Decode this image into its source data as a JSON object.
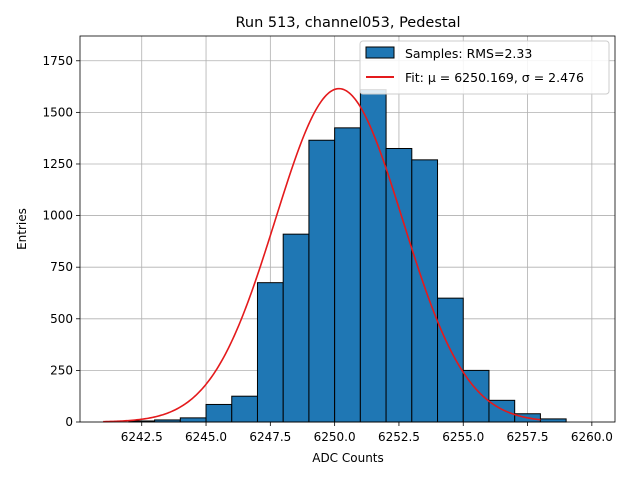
{
  "chart_data": {
    "type": "bar",
    "title": "Run 513, channel053, Pedestal",
    "xlabel": "ADC Counts",
    "ylabel": "Entries",
    "xlim": [
      6240.1,
      6260.9
    ],
    "ylim": [
      0,
      1870
    ],
    "xticks": [
      6242.5,
      6245.0,
      6247.5,
      6250.0,
      6252.5,
      6255.0,
      6257.5,
      6260.0
    ],
    "xtick_labels": [
      "6242.5",
      "6245.0",
      "6247.5",
      "6250.0",
      "6252.5",
      "6255.0",
      "6257.5",
      "6260.0"
    ],
    "yticks": [
      0,
      250,
      500,
      750,
      1000,
      1250,
      1500,
      1750
    ],
    "ytick_labels": [
      "0",
      "250",
      "500",
      "750",
      "1000",
      "1250",
      "1500",
      "1750"
    ],
    "grid": true,
    "legend_position": "top-right",
    "bin_edges": [
      6242,
      6243,
      6244,
      6245,
      6246,
      6247,
      6248,
      6249,
      6250,
      6251,
      6252,
      6253,
      6254,
      6255,
      6256,
      6257,
      6258
    ],
    "counts": [
      5,
      10,
      20,
      85,
      125,
      675,
      910,
      1365,
      1425,
      1610,
      1325,
      1270,
      600,
      250,
      105,
      40,
      15
    ],
    "bins": [
      {
        "x0": 6242,
        "x1": 6243,
        "count": 5
      },
      {
        "x0": 6243,
        "x1": 6244,
        "count": 10
      },
      {
        "x0": 6244,
        "x1": 6245,
        "count": 20
      },
      {
        "x0": 6245,
        "x1": 6246,
        "count": 85
      },
      {
        "x0": 6246,
        "x1": 6247,
        "count": 125
      },
      {
        "x0": 6247,
        "x1": 6248,
        "count": 675
      },
      {
        "x0": 6248,
        "x1": 6249,
        "count": 910
      },
      {
        "x0": 6249,
        "x1": 6250,
        "count": 1365
      },
      {
        "x0": 6250,
        "x1": 6251,
        "count": 1425
      },
      {
        "x0": 6251,
        "x1": 6252,
        "count": 1610
      },
      {
        "x0": 6252,
        "x1": 6253,
        "count": 1325
      },
      {
        "x0": 6253,
        "x1": 6254,
        "count": 1270
      },
      {
        "x0": 6254,
        "x1": 6255,
        "count": 600
      },
      {
        "x0": 6255,
        "x1": 6256,
        "count": 250
      },
      {
        "x0": 6256,
        "x1": 6257,
        "count": 105
      },
      {
        "x0": 6257,
        "x1": 6258,
        "count": 40
      },
      {
        "x0": 6258,
        "x1": 6259,
        "count": 15
      }
    ],
    "fit": {
      "type": "gaussian",
      "mu": 6250.169,
      "sigma": 2.476,
      "amplitude": 1615,
      "x_range": [
        6241,
        6258
      ]
    },
    "series": [
      {
        "name": "Samples: RMS=2.33",
        "kind": "histogram",
        "color": "#1f77b4",
        "edge_color": "#000000"
      },
      {
        "name": "Fit: μ = 6250.169, σ = 2.476",
        "kind": "line",
        "color": "#e41a1c"
      }
    ]
  }
}
